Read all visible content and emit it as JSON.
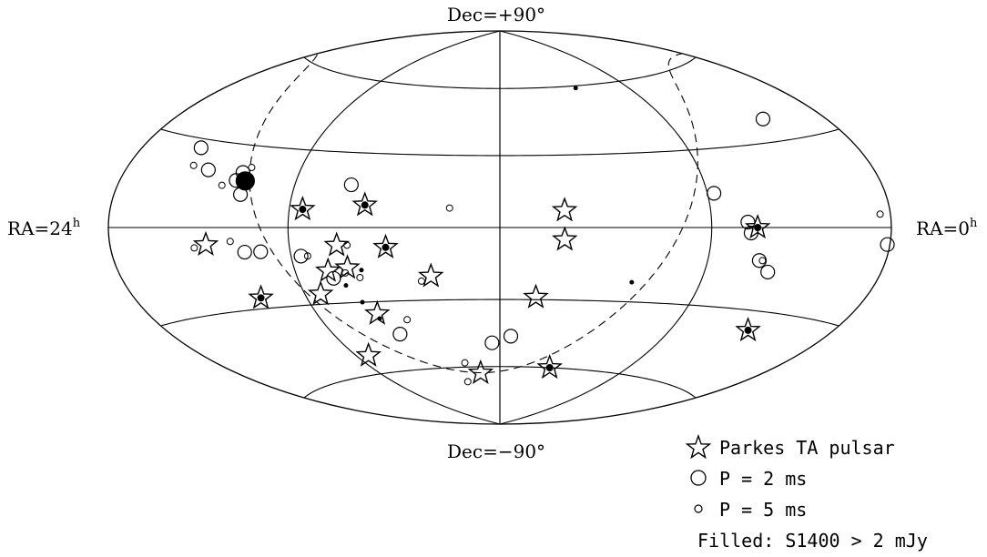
{
  "labels": {
    "top": "Dec=+90°",
    "bottom": "Dec=−90°",
    "left": "RA=24",
    "left_sup": "h",
    "right": "RA=0",
    "right_sup": "h"
  },
  "legend": {
    "items": [
      {
        "symbol": "star",
        "label": "Parkes TA pulsar"
      },
      {
        "symbol": "circle-large",
        "label": "P = 2 ms"
      },
      {
        "symbol": "circle-small",
        "label": "P = 5 ms"
      }
    ],
    "note": "Filled: S1400 > 2 mJy"
  },
  "chart_data": {
    "type": "scatter",
    "projection": "hammer-aitoff",
    "coordinates": "equatorial",
    "xlabel": "",
    "ylabel": "",
    "xlim": [
      24,
      0
    ],
    "ylim": [
      -90,
      90
    ],
    "meridians_hours": [
      24,
      18,
      12,
      6,
      0
    ],
    "parallels_deg": [
      -60,
      -30,
      0,
      30,
      60
    ],
    "dashed_line": "galactic plane",
    "series": [
      {
        "name": "Parkes TA pulsar",
        "points": [
          {
            "ra": 17.6,
            "dec": 7,
            "filled": true
          },
          {
            "ra": 15.8,
            "dec": 9,
            "filled": true
          },
          {
            "ra": 20.6,
            "dec": -6,
            "filled": false
          },
          {
            "ra": 16.6,
            "dec": -7,
            "filled": false
          },
          {
            "ra": 15.2,
            "dec": -8,
            "filled": true
          },
          {
            "ra": 17.0,
            "dec": -17,
            "filled": false
          },
          {
            "ra": 16.4,
            "dec": -16,
            "filled": false
          },
          {
            "ra": 14.0,
            "dec": -20,
            "filled": false
          },
          {
            "ra": 19.5,
            "dec": -26,
            "filled": true
          },
          {
            "ra": 17.5,
            "dec": -26,
            "filled": false
          },
          {
            "ra": 16.0,
            "dec": -35,
            "filled": false
          },
          {
            "ra": 17.5,
            "dec": -52,
            "filled": false
          },
          {
            "ra": 13.0,
            "dec": -63,
            "filled": false
          },
          {
            "ra": 10.2,
            "dec": 7,
            "filled": false
          },
          {
            "ra": 10.2,
            "dec": -5,
            "filled": false
          },
          {
            "ra": 10.9,
            "dec": -29,
            "filled": false
          },
          {
            "ra": 9.6,
            "dec": -60,
            "filled": true
          },
          {
            "ra": 4.6,
            "dec": 0,
            "filled": true
          },
          {
            "ra": 3.2,
            "dec": -37,
            "filled": true
          }
        ]
      },
      {
        "name": "P = 2 ms",
        "points": [
          {
            "ra": 21.8,
            "dec": 27,
            "filled": false
          },
          {
            "ra": 21.0,
            "dec": 20,
            "filled": false
          },
          {
            "ra": 19.9,
            "dec": 17,
            "filled": false
          },
          {
            "ra": 19.8,
            "dec": 20,
            "filled": false
          },
          {
            "ra": 19.6,
            "dec": 12,
            "filled": false
          },
          {
            "ra": 16.3,
            "dec": 17,
            "filled": false
          },
          {
            "ra": 19.4,
            "dec": -9,
            "filled": false
          },
          {
            "ra": 18.9,
            "dec": -9,
            "filled": false
          },
          {
            "ra": 17.7,
            "dec": -11,
            "filled": false
          },
          {
            "ra": 16.9,
            "dec": -20,
            "filled": false
          },
          {
            "ra": 15.6,
            "dec": -44,
            "filled": false
          },
          {
            "ra": 12.3,
            "dec": -49,
            "filled": false
          },
          {
            "ra": 11.6,
            "dec": -46,
            "filled": false
          },
          {
            "ra": 5.8,
            "dec": 13,
            "filled": false
          },
          {
            "ra": 4.9,
            "dec": 2,
            "filled": false
          },
          {
            "ra": 4.8,
            "dec": -2,
            "filled": false
          },
          {
            "ra": 4.0,
            "dec": -16,
            "filled": false
          },
          {
            "ra": 4.4,
            "dec": -12,
            "filled": false
          },
          {
            "ra": 0.1,
            "dec": -5,
            "filled": false
          },
          {
            "ra": 2.4,
            "dec": 38,
            "filled": false
          },
          {
            "ra": 19.6,
            "dec": 17,
            "filled": true
          }
        ]
      },
      {
        "name": "P = 5 ms",
        "points": [
          {
            "ra": 21.6,
            "dec": 21,
            "filled": false
          },
          {
            "ra": 20.3,
            "dec": 15,
            "filled": false
          },
          {
            "ra": 19.6,
            "dec": 22,
            "filled": false
          },
          {
            "ra": 21.0,
            "dec": -7,
            "filled": false
          },
          {
            "ra": 19.8,
            "dec": -5,
            "filled": false
          },
          {
            "ra": 16.3,
            "dec": -7,
            "filled": false
          },
          {
            "ra": 17.5,
            "dec": -11,
            "filled": false
          },
          {
            "ra": 16.5,
            "dec": -18,
            "filled": false
          },
          {
            "ra": 16.1,
            "dec": -20,
            "filled": false
          },
          {
            "ra": 14.3,
            "dec": -22,
            "filled": false
          },
          {
            "ra": 13.4,
            "dec": 8,
            "filled": false
          },
          {
            "ra": 15.1,
            "dec": -38,
            "filled": false
          },
          {
            "ra": 13.6,
            "dec": -58,
            "filled": false
          },
          {
            "ra": 13.9,
            "dec": -67,
            "filled": false
          },
          {
            "ra": 4.3,
            "dec": -12,
            "filled": false
          },
          {
            "ra": 0.4,
            "dec": 4,
            "filled": false
          },
          {
            "ra": 8.4,
            "dec": 59,
            "filled": true
          },
          {
            "ra": 16.0,
            "dec": -17,
            "filled": true
          },
          {
            "ra": 16.6,
            "dec": -23,
            "filled": true
          },
          {
            "ra": 16.3,
            "dec": -30,
            "filled": true
          },
          {
            "ra": 16.0,
            "dec": -37,
            "filled": true
          },
          {
            "ra": 8.1,
            "dec": -22,
            "filled": true
          }
        ]
      }
    ]
  }
}
